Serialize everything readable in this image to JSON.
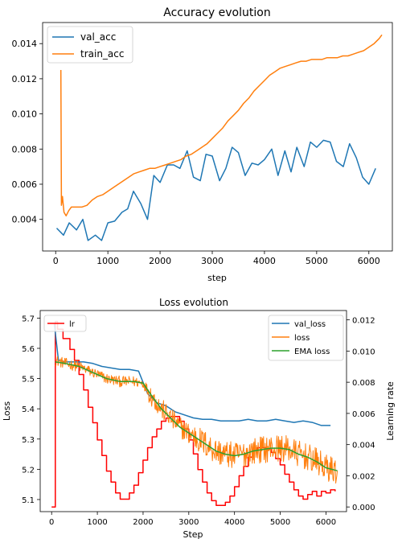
{
  "chart_data": [
    {
      "type": "line",
      "title": "Accuracy evolution",
      "xlabel": "step",
      "ylabel": "",
      "xlim": [
        -250,
        6450
      ],
      "ylim": [
        0.0022,
        0.0152
      ],
      "xticks": [
        0,
        1000,
        2000,
        3000,
        4000,
        5000,
        6000
      ],
      "xtick_labels": [
        "0",
        "1000",
        "2000",
        "3000",
        "4000",
        "5000",
        "6000"
      ],
      "yticks": [
        0.004,
        0.006,
        0.008,
        0.01,
        0.012,
        0.014
      ],
      "ytick_labels": [
        "0.004",
        "0.006",
        "0.008",
        "0.010",
        "0.012",
        "0.014"
      ],
      "legend_position": "top-left",
      "grid": false,
      "series": [
        {
          "name": "val_acc",
          "color": "#1f77b4",
          "x": [
            20,
            150,
            260,
            400,
            520,
            620,
            760,
            880,
            1000,
            1130,
            1270,
            1380,
            1490,
            1630,
            1760,
            1880,
            2000,
            2140,
            2260,
            2380,
            2520,
            2640,
            2770,
            2880,
            3000,
            3140,
            3260,
            3380,
            3500,
            3630,
            3760,
            3880,
            4000,
            4140,
            4260,
            4390,
            4510,
            4620,
            4760,
            4880,
            5000,
            5130,
            5260,
            5380,
            5510,
            5630,
            5760,
            5880,
            6000,
            6130
          ],
          "y": [
            0.0035,
            0.0031,
            0.0038,
            0.0034,
            0.004,
            0.0028,
            0.0031,
            0.0028,
            0.0038,
            0.0039,
            0.0044,
            0.0046,
            0.0056,
            0.0049,
            0.004,
            0.0065,
            0.0061,
            0.0071,
            0.0071,
            0.0069,
            0.0079,
            0.0064,
            0.0062,
            0.0077,
            0.0076,
            0.0062,
            0.0069,
            0.0081,
            0.0078,
            0.0065,
            0.0072,
            0.0071,
            0.0074,
            0.008,
            0.0065,
            0.0079,
            0.0067,
            0.0081,
            0.007,
            0.0084,
            0.0081,
            0.0085,
            0.0084,
            0.0073,
            0.007,
            0.0083,
            0.0075,
            0.0064,
            0.006,
            0.0069
          ]
        },
        {
          "name": "train_acc",
          "color": "#ff7f0e",
          "x": [
            100,
            110,
            130,
            160,
            200,
            250,
            300,
            350,
            400,
            500,
            600,
            700,
            800,
            900,
            1000,
            1100,
            1200,
            1300,
            1400,
            1500,
            1600,
            1700,
            1800,
            1900,
            2000,
            2100,
            2200,
            2300,
            2400,
            2500,
            2600,
            2700,
            2800,
            2900,
            3000,
            3100,
            3200,
            3300,
            3400,
            3500,
            3600,
            3700,
            3800,
            3900,
            4000,
            4100,
            4200,
            4300,
            4400,
            4500,
            4600,
            4700,
            4800,
            4900,
            5000,
            5100,
            5200,
            5300,
            5400,
            5500,
            5600,
            5700,
            5800,
            5900,
            6000,
            6100,
            6200,
            6250
          ],
          "y": [
            0.0125,
            0.0048,
            0.0053,
            0.0044,
            0.0042,
            0.0045,
            0.0047,
            0.0047,
            0.0047,
            0.0047,
            0.0048,
            0.0051,
            0.0053,
            0.0054,
            0.0056,
            0.0058,
            0.006,
            0.0062,
            0.0064,
            0.0066,
            0.0067,
            0.0068,
            0.0069,
            0.0069,
            0.007,
            0.0071,
            0.0072,
            0.0073,
            0.0074,
            0.0076,
            0.0077,
            0.0079,
            0.0081,
            0.0083,
            0.0086,
            0.0089,
            0.0092,
            0.0096,
            0.0099,
            0.0102,
            0.0106,
            0.0109,
            0.0113,
            0.0116,
            0.0119,
            0.0122,
            0.0124,
            0.0126,
            0.0127,
            0.0128,
            0.0129,
            0.013,
            0.013,
            0.0131,
            0.0131,
            0.0131,
            0.0132,
            0.0132,
            0.0132,
            0.0133,
            0.0133,
            0.0134,
            0.0135,
            0.0136,
            0.0138,
            0.014,
            0.0143,
            0.0145
          ]
        }
      ]
    },
    {
      "type": "line",
      "title": "Loss evolution",
      "xlabel": "Step",
      "ylabel": "Loss",
      "ylabel_right": "Learning rate",
      "xlim": [
        -250,
        6450
      ],
      "ylim": [
        5.06,
        5.725
      ],
      "ylim_right": [
        -0.0003,
        0.0126
      ],
      "xticks": [
        0,
        1000,
        2000,
        3000,
        4000,
        5000,
        6000
      ],
      "xtick_labels": [
        "0",
        "1000",
        "2000",
        "3000",
        "4000",
        "5000",
        "6000"
      ],
      "yticks": [
        5.1,
        5.2,
        5.3,
        5.4,
        5.5,
        5.6,
        5.7
      ],
      "ytick_labels": [
        "5.1",
        "5.2",
        "5.3",
        "5.4",
        "5.5",
        "5.6",
        "5.7"
      ],
      "yticks_right": [
        0.0,
        0.002,
        0.004,
        0.006,
        0.008,
        0.01,
        0.012
      ],
      "ytick_labels_right": [
        "0.000",
        "0.002",
        "0.004",
        "0.006",
        "0.008",
        "0.010",
        "0.012"
      ],
      "legend_position": "top-right",
      "legend_right_position": "top-left",
      "grid": false,
      "series": [
        {
          "name": "val_loss",
          "color": "#1f77b4",
          "axis": "left",
          "x": [
            60,
            150,
            300,
            500,
            700,
            900,
            1100,
            1300,
            1500,
            1700,
            1900,
            2100,
            2300,
            2500,
            2700,
            2900,
            3100,
            3300,
            3500,
            3700,
            3900,
            4100,
            4300,
            4500,
            4700,
            4900,
            5100,
            5300,
            5500,
            5700,
            5900,
            6100
          ],
          "y": [
            5.68,
            5.56,
            5.555,
            5.555,
            5.555,
            5.55,
            5.54,
            5.535,
            5.53,
            5.53,
            5.525,
            5.45,
            5.42,
            5.41,
            5.39,
            5.38,
            5.37,
            5.365,
            5.365,
            5.36,
            5.36,
            5.36,
            5.365,
            5.36,
            5.36,
            5.365,
            5.36,
            5.355,
            5.36,
            5.355,
            5.345,
            5.345
          ]
        },
        {
          "name": "loss",
          "color": "#ff7f0e",
          "axis": "left",
          "x": [
            80,
            300,
            600,
            900,
            1200,
            1500,
            1800,
            2000,
            2200,
            2400,
            2600,
            2800,
            3000,
            3200,
            3400,
            3600,
            3800,
            4000,
            4200,
            4400,
            4600,
            4800,
            5000,
            5200,
            5400,
            5600,
            5800,
            6000,
            6250
          ],
          "y": [
            5.56,
            5.55,
            5.54,
            5.52,
            5.5,
            5.49,
            5.49,
            5.485,
            5.44,
            5.4,
            5.37,
            5.34,
            5.32,
            5.3,
            5.28,
            5.26,
            5.25,
            5.245,
            5.25,
            5.26,
            5.265,
            5.27,
            5.27,
            5.265,
            5.25,
            5.24,
            5.225,
            5.205,
            5.195
          ]
        },
        {
          "name": "EMA loss",
          "color": "#2ca02c",
          "axis": "left",
          "x": [
            80,
            300,
            600,
            900,
            1200,
            1500,
            1800,
            2000,
            2200,
            2400,
            2600,
            2800,
            3000,
            3200,
            3400,
            3600,
            3800,
            4000,
            4200,
            4400,
            4600,
            4800,
            5000,
            5200,
            5400,
            5600,
            5800,
            6000,
            6250
          ],
          "y": [
            5.555,
            5.55,
            5.54,
            5.52,
            5.5,
            5.49,
            5.49,
            5.485,
            5.44,
            5.4,
            5.37,
            5.34,
            5.32,
            5.3,
            5.28,
            5.26,
            5.25,
            5.245,
            5.25,
            5.26,
            5.265,
            5.27,
            5.27,
            5.265,
            5.25,
            5.24,
            5.225,
            5.205,
            5.195
          ]
        },
        {
          "name": "lr",
          "color": "#ff0000",
          "axis": "right",
          "step": true,
          "x": [
            0,
            80,
            130,
            250,
            400,
            500,
            600,
            700,
            800,
            900,
            1000,
            1100,
            1200,
            1300,
            1400,
            1500,
            1600,
            1700,
            1800,
            1900,
            2000,
            2100,
            2200,
            2300,
            2400,
            2500,
            2600,
            2700,
            2800,
            2900,
            3000,
            3100,
            3200,
            3300,
            3400,
            3500,
            3600,
            3700,
            3800,
            3900,
            4000,
            4100,
            4200,
            4300,
            4400,
            4500,
            4600,
            4700,
            4800,
            4900,
            5000,
            5100,
            5200,
            5300,
            5400,
            5500,
            5600,
            5700,
            5800,
            5900,
            6000,
            6100,
            6200
          ],
          "y": [
            0.0,
            0.0119,
            0.0114,
            0.0108,
            0.0101,
            0.0094,
            0.0085,
            0.0075,
            0.0064,
            0.0054,
            0.0043,
            0.0033,
            0.0023,
            0.0016,
            0.0009,
            0.0005,
            0.0005,
            0.0009,
            0.0014,
            0.0022,
            0.003,
            0.0038,
            0.0045,
            0.005,
            0.0055,
            0.0057,
            0.0058,
            0.0058,
            0.0055,
            0.005,
            0.0043,
            0.0034,
            0.0024,
            0.0016,
            0.0009,
            0.0004,
            0.0001,
            0.0001,
            0.0003,
            0.0007,
            0.0013,
            0.002,
            0.0026,
            0.0032,
            0.0036,
            0.0038,
            0.0038,
            0.0037,
            0.0035,
            0.0031,
            0.0027,
            0.0021,
            0.0016,
            0.0011,
            0.0007,
            0.0005,
            0.0008,
            0.001,
            0.0007,
            0.001,
            0.0009,
            0.0011,
            0.001
          ]
        }
      ]
    }
  ]
}
